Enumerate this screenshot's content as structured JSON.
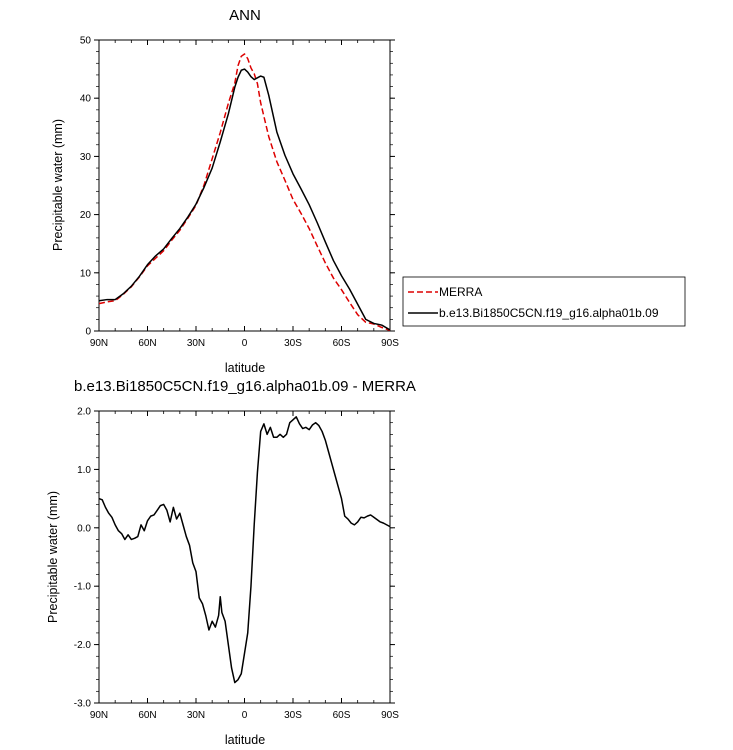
{
  "chart_data": [
    {
      "type": "line",
      "title": "ANN",
      "xlabel": "latitude",
      "ylabel": "Precipitable water (mm)",
      "xlim": [
        90,
        -90
      ],
      "ylim": [
        0,
        50
      ],
      "xticks": [
        90,
        60,
        30,
        0,
        -30,
        -60,
        -90
      ],
      "xtick_labels": [
        "90N",
        "60N",
        "30N",
        "0",
        "30S",
        "60S",
        "90S"
      ],
      "yticks": [
        0,
        10,
        20,
        30,
        40,
        50
      ],
      "ytick_labels": [
        "0",
        "10",
        "20",
        "30",
        "40",
        "50"
      ],
      "legend_position": "right",
      "series": [
        {
          "name": "MERRA",
          "color": "#dd0000",
          "dash": "dashed",
          "points": [
            [
              90,
              4.7
            ],
            [
              85,
              5.0
            ],
            [
              80,
              5.2
            ],
            [
              75,
              6.3
            ],
            [
              70,
              7.6
            ],
            [
              65,
              9.3
            ],
            [
              60,
              11.2
            ],
            [
              55,
              12.5
            ],
            [
              50,
              13.8
            ],
            [
              45,
              15.6
            ],
            [
              40,
              17.3
            ],
            [
              35,
              19.4
            ],
            [
              30,
              21.6
            ],
            [
              25,
              25.1
            ],
            [
              20,
              29.6
            ],
            [
              15,
              34.1
            ],
            [
              10,
              39.1
            ],
            [
              6,
              42.6
            ],
            [
              4,
              45.6
            ],
            [
              2,
              47.2
            ],
            [
              0,
              47.6
            ],
            [
              -2,
              46.8
            ],
            [
              -4,
              45.2
            ],
            [
              -6,
              44.2
            ],
            [
              -8,
              42.5
            ],
            [
              -10,
              39.2
            ],
            [
              -15,
              33.4
            ],
            [
              -20,
              29.1
            ],
            [
              -25,
              25.9
            ],
            [
              -30,
              22.6
            ],
            [
              -35,
              20.2
            ],
            [
              -40,
              17.6
            ],
            [
              -45,
              14.6
            ],
            [
              -50,
              11.7
            ],
            [
              -55,
              9.1
            ],
            [
              -60,
              7.1
            ],
            [
              -65,
              4.9
            ],
            [
              -70,
              2.8
            ],
            [
              -75,
              1.5
            ],
            [
              -80,
              1.2
            ],
            [
              -85,
              0.6
            ],
            [
              -90,
              0.1
            ]
          ]
        },
        {
          "name": "b.e13.Bi1850C5CN.f19_g16.alpha01b.09",
          "color": "#000000",
          "dash": "solid",
          "points": [
            [
              90,
              5.2
            ],
            [
              85,
              5.4
            ],
            [
              80,
              5.4
            ],
            [
              75,
              6.4
            ],
            [
              70,
              7.7
            ],
            [
              65,
              9.4
            ],
            [
              60,
              11.4
            ],
            [
              55,
              12.9
            ],
            [
              50,
              14.1
            ],
            [
              45,
              15.9
            ],
            [
              40,
              17.6
            ],
            [
              35,
              19.6
            ],
            [
              30,
              21.8
            ],
            [
              25,
              24.7
            ],
            [
              20,
              28.0
            ],
            [
              15,
              32.5
            ],
            [
              10,
              37.3
            ],
            [
              6,
              41.9
            ],
            [
              4,
              43.6
            ],
            [
              2,
              44.8
            ],
            [
              0,
              45.0
            ],
            [
              -2,
              44.5
            ],
            [
              -4,
              43.7
            ],
            [
              -6,
              43.2
            ],
            [
              -8,
              43.5
            ],
            [
              -10,
              43.8
            ],
            [
              -12,
              43.6
            ],
            [
              -15,
              40.5
            ],
            [
              -20,
              34.2
            ],
            [
              -25,
              30.2
            ],
            [
              -30,
              27.0
            ],
            [
              -35,
              24.4
            ],
            [
              -40,
              21.7
            ],
            [
              -45,
              18.6
            ],
            [
              -50,
              15.3
            ],
            [
              -55,
              12.1
            ],
            [
              -60,
              9.5
            ],
            [
              -65,
              7.2
            ],
            [
              -70,
              4.6
            ],
            [
              -75,
              2.0
            ],
            [
              -80,
              1.3
            ],
            [
              -85,
              1.0
            ],
            [
              -90,
              0.2
            ]
          ]
        }
      ]
    },
    {
      "type": "line",
      "title": "b.e13.Bi1850C5CN.f19_g16.alpha01b.09 - MERRA",
      "xlabel": "latitude",
      "ylabel": "Precipitable water (mm)",
      "xlim": [
        90,
        -90
      ],
      "ylim": [
        -3,
        2
      ],
      "xticks": [
        90,
        60,
        30,
        0,
        -30,
        -60,
        -90
      ],
      "xtick_labels": [
        "90N",
        "60N",
        "30N",
        "0",
        "30S",
        "60S",
        "90S"
      ],
      "yticks": [
        -3,
        -2,
        -1,
        0,
        1,
        2
      ],
      "ytick_labels": [
        "-3.0",
        "-2.0",
        "-1.0",
        "0.0",
        "1.0",
        "2.0"
      ],
      "series": [
        {
          "color": "#000000",
          "dash": "solid",
          "points": [
            [
              90,
              0.5
            ],
            [
              88,
              0.48
            ],
            [
              86,
              0.35
            ],
            [
              84,
              0.25
            ],
            [
              82,
              0.18
            ],
            [
              80,
              0.05
            ],
            [
              78,
              -0.05
            ],
            [
              76,
              -0.1
            ],
            [
              74,
              -0.2
            ],
            [
              72,
              -0.12
            ],
            [
              70,
              -0.2
            ],
            [
              68,
              -0.18
            ],
            [
              66,
              -0.15
            ],
            [
              64,
              0.05
            ],
            [
              62,
              -0.05
            ],
            [
              60,
              0.12
            ],
            [
              58,
              0.2
            ],
            [
              56,
              0.22
            ],
            [
              54,
              0.3
            ],
            [
              52,
              0.38
            ],
            [
              50,
              0.4
            ],
            [
              48,
              0.3
            ],
            [
              46,
              0.1
            ],
            [
              44,
              0.35
            ],
            [
              42,
              0.15
            ],
            [
              40,
              0.25
            ],
            [
              38,
              0.05
            ],
            [
              36,
              -0.15
            ],
            [
              34,
              -0.3
            ],
            [
              32,
              -0.6
            ],
            [
              30,
              -0.75
            ],
            [
              28,
              -1.2
            ],
            [
              26,
              -1.3
            ],
            [
              24,
              -1.5
            ],
            [
              22,
              -1.75
            ],
            [
              20,
              -1.6
            ],
            [
              18,
              -1.7
            ],
            [
              16,
              -1.5
            ],
            [
              15,
              -1.18
            ],
            [
              14,
              -1.45
            ],
            [
              12,
              -1.6
            ],
            [
              10,
              -2.0
            ],
            [
              8,
              -2.4
            ],
            [
              6,
              -2.65
            ],
            [
              4,
              -2.6
            ],
            [
              2,
              -2.5
            ],
            [
              0,
              -2.15
            ],
            [
              -2,
              -1.8
            ],
            [
              -4,
              -1.0
            ],
            [
              -6,
              0.05
            ],
            [
              -8,
              0.95
            ],
            [
              -10,
              1.65
            ],
            [
              -12,
              1.78
            ],
            [
              -14,
              1.6
            ],
            [
              -16,
              1.72
            ],
            [
              -18,
              1.55
            ],
            [
              -20,
              1.55
            ],
            [
              -22,
              1.6
            ],
            [
              -24,
              1.55
            ],
            [
              -26,
              1.6
            ],
            [
              -28,
              1.8
            ],
            [
              -30,
              1.85
            ],
            [
              -32,
              1.9
            ],
            [
              -34,
              1.78
            ],
            [
              -36,
              1.7
            ],
            [
              -38,
              1.72
            ],
            [
              -40,
              1.68
            ],
            [
              -42,
              1.76
            ],
            [
              -44,
              1.8
            ],
            [
              -46,
              1.75
            ],
            [
              -48,
              1.65
            ],
            [
              -50,
              1.5
            ],
            [
              -52,
              1.3
            ],
            [
              -54,
              1.1
            ],
            [
              -56,
              0.9
            ],
            [
              -58,
              0.7
            ],
            [
              -60,
              0.5
            ],
            [
              -62,
              0.2
            ],
            [
              -64,
              0.15
            ],
            [
              -66,
              0.08
            ],
            [
              -68,
              0.05
            ],
            [
              -70,
              0.1
            ],
            [
              -72,
              0.18
            ],
            [
              -74,
              0.17
            ],
            [
              -76,
              0.2
            ],
            [
              -78,
              0.22
            ],
            [
              -80,
              0.18
            ],
            [
              -82,
              0.14
            ],
            [
              -84,
              0.1
            ],
            [
              -86,
              0.08
            ],
            [
              -88,
              0.05
            ],
            [
              -90,
              0.02
            ]
          ]
        }
      ]
    }
  ]
}
